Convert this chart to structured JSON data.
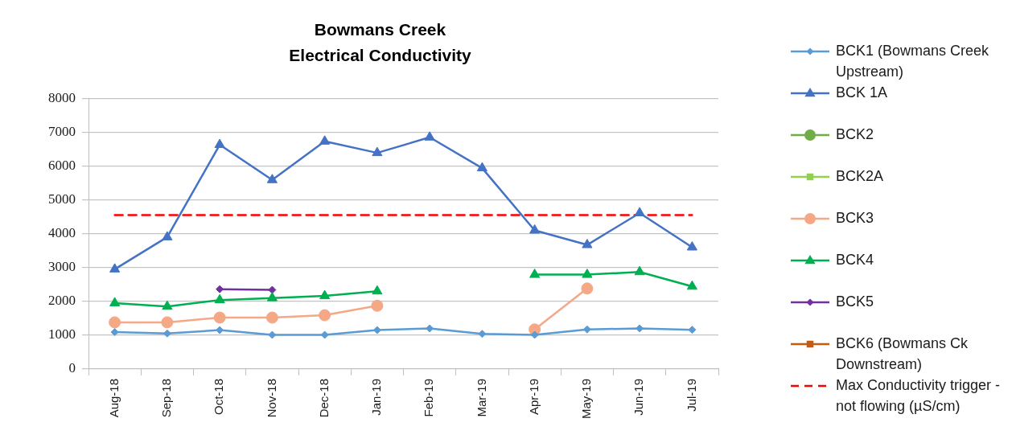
{
  "chart_data": {
    "type": "line",
    "title": "Bowmans Creek",
    "subtitle": "Electrical Conductivity",
    "categories": [
      "Aug-18",
      "Sep-18",
      "Oct-18",
      "Nov-18",
      "Dec-18",
      "Jan-19",
      "Feb-19",
      "Mar-19",
      "Apr-19",
      "May-19",
      "Jun-19",
      "Jul-19"
    ],
    "ylim": [
      0,
      8000
    ],
    "yticks": [
      0,
      1000,
      2000,
      3000,
      4000,
      5000,
      6000,
      7000,
      8000
    ],
    "grid": "y",
    "legend": "right",
    "series": [
      {
        "name": "BCK1 (Bowmans Creek Upstream)",
        "color": "#5b9bd5",
        "marker": "diamond",
        "values": [
          1090,
          1050,
          1150,
          1010,
          1010,
          1150,
          1200,
          1040,
          1010,
          1170,
          1200,
          1160
        ]
      },
      {
        "name": "BCK 1A",
        "color": "#4472c4",
        "marker": "triangle",
        "values": [
          2950,
          3900,
          6630,
          5590,
          6730,
          6390,
          6850,
          5940,
          4100,
          3670,
          4610,
          3600
        ]
      },
      {
        "name": "BCK2",
        "color": "#70ad47",
        "marker": "circle",
        "values": [
          null,
          null,
          null,
          null,
          null,
          null,
          null,
          null,
          null,
          null,
          null,
          null
        ]
      },
      {
        "name": "BCK2A",
        "color": "#92d050",
        "marker": "square",
        "values": [
          null,
          null,
          null,
          null,
          null,
          null,
          null,
          null,
          null,
          null,
          null,
          null
        ]
      },
      {
        "name": "BCK3",
        "color": "#f4a886",
        "marker": "circle",
        "values": [
          1380,
          1380,
          1520,
          1520,
          1590,
          1870,
          null,
          null,
          1170,
          2380,
          null,
          null
        ]
      },
      {
        "name": "BCK4",
        "color": "#00b050",
        "marker": "triangle",
        "values": [
          1950,
          1850,
          2040,
          2100,
          2160,
          2300,
          null,
          null,
          2790,
          2790,
          2870,
          2440
        ]
      },
      {
        "name": "BCK5",
        "color": "#7030a0",
        "marker": "diamond",
        "values": [
          null,
          null,
          2360,
          2340,
          null,
          null,
          null,
          null,
          null,
          null,
          null,
          null
        ]
      },
      {
        "name": "BCK6 (Bowmans Ck Downstream)",
        "color": "#c55a11",
        "marker": "square",
        "values": [
          null,
          null,
          null,
          null,
          null,
          null,
          null,
          null,
          null,
          null,
          null,
          null
        ]
      },
      {
        "name": "Max Conductivity trigger - not flowing (µS/cm)",
        "color": "#ff0000",
        "marker": "none",
        "line_style": "dashed",
        "values": [
          4550,
          4550,
          4550,
          4550,
          4550,
          4550,
          4550,
          4550,
          4550,
          4550,
          4550,
          4550
        ]
      }
    ]
  }
}
